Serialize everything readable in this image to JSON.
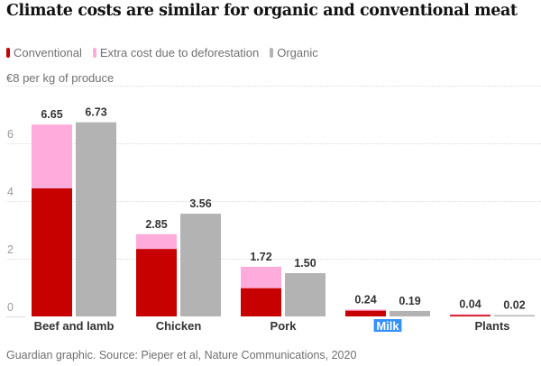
{
  "chart_data": {
    "type": "bar",
    "title": "Climate costs are similar for organic and conventional meat",
    "ylabel": "€8 per kg of produce",
    "xlabel": "",
    "source": "Guardian graphic. Source: Pieper et al, Nature Communications, 2020",
    "ylim": [
      0,
      8
    ],
    "yticks": [
      0,
      2,
      4,
      6
    ],
    "grid": true,
    "legend_position": "top-left",
    "categories": [
      "Beef and lamb",
      "Chicken",
      "Pork",
      "Milk",
      "Plants"
    ],
    "highlighted_category": "Milk",
    "series": [
      {
        "name": "Conventional",
        "color": "#c70000",
        "stack": "conventional",
        "values": [
          4.44,
          2.34,
          0.98,
          0.2,
          0.03
        ]
      },
      {
        "name": "Extra cost due to deforestation",
        "color": "#ffabdb",
        "stack": "conventional",
        "values": [
          2.21,
          0.51,
          0.74,
          0.04,
          0.01
        ]
      },
      {
        "name": "Organic",
        "color": "#b3b3b3",
        "stack": "organic",
        "values": [
          6.73,
          3.56,
          1.5,
          0.19,
          0.02
        ]
      }
    ],
    "totals": {
      "conventional_labels": [
        "6.65",
        "2.85",
        "1.72",
        "0.24",
        "0.04"
      ],
      "organic_labels": [
        "6.73",
        "3.56",
        "1.50",
        "0.19",
        "0.02"
      ]
    }
  }
}
